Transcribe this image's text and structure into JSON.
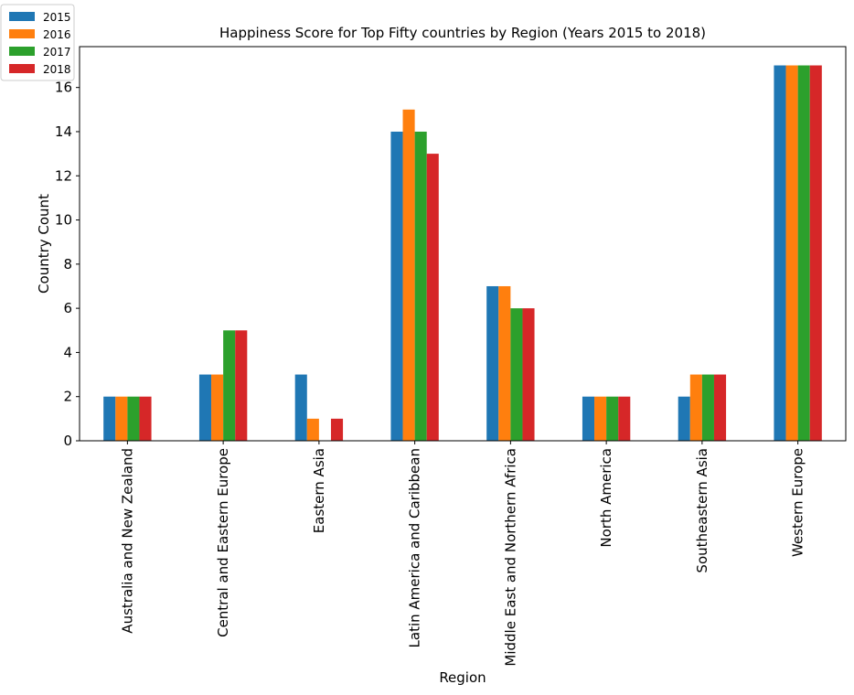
{
  "chart_data": {
    "type": "bar",
    "title": "Happiness Score for Top Fifty countries by Region (Years 2015 to 2018)",
    "xlabel": "Region",
    "ylabel": "Country Count",
    "ylim": [
      0,
      17.85
    ],
    "yticks": [
      0,
      2,
      4,
      6,
      8,
      10,
      12,
      14,
      16
    ],
    "grid": false,
    "legend_position": "top-left",
    "categories": [
      "Australia and New Zealand",
      "Central and Eastern Europe",
      "Eastern Asia",
      "Latin America and Caribbean",
      "Middle East and Northern Africa",
      "North America",
      "Southeastern Asia",
      "Western Europe"
    ],
    "series": [
      {
        "name": "2015",
        "color": "#1f77b4",
        "values": [
          2,
          3,
          3,
          14,
          7,
          2,
          2,
          17
        ]
      },
      {
        "name": "2016",
        "color": "#ff7f0e",
        "values": [
          2,
          3,
          1,
          15,
          7,
          2,
          3,
          17
        ]
      },
      {
        "name": "2017",
        "color": "#2ca02c",
        "values": [
          2,
          5,
          0,
          14,
          6,
          2,
          3,
          17
        ]
      },
      {
        "name": "2018",
        "color": "#d62728",
        "values": [
          2,
          5,
          1,
          13,
          6,
          2,
          3,
          17
        ]
      }
    ]
  }
}
